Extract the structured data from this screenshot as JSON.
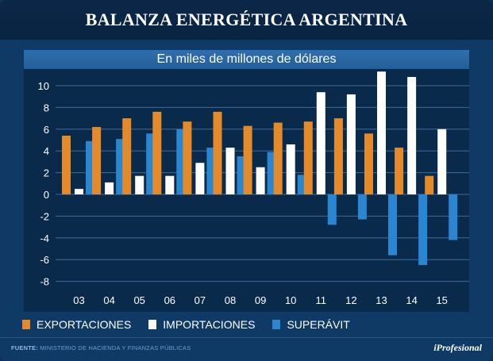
{
  "title": "BALANZA ENERGÉTICA ARGENTINA",
  "subtitle": "En miles de millones de dólares",
  "legend": {
    "exports": "EXPORTACIONES",
    "imports": "IMPORTACIONES",
    "surplus": "SUPERÁVIT"
  },
  "colors": {
    "exports": "#e48a2a",
    "imports": "#ffffff",
    "surplus": "#2a86d0"
  },
  "footer": {
    "source_label": "FUENTE:",
    "source_text": "MINISTERIO DE HACIENDA Y FINANZAS PÚBLICAS",
    "brand": "iProfesional"
  },
  "chart_data": {
    "type": "bar",
    "title": "BALANZA ENERGÉTICA ARGENTINA",
    "subtitle": "En miles de millones de dólares",
    "xlabel": "",
    "ylabel": "",
    "categories": [
      "03",
      "04",
      "05",
      "06",
      "07",
      "08",
      "09",
      "10",
      "11",
      "12",
      "13",
      "14",
      "15"
    ],
    "ylim": [
      -8,
      11
    ],
    "yticks": [
      10,
      8,
      6,
      4,
      2,
      0,
      -2,
      -4,
      -6,
      -8
    ],
    "grid": true,
    "legend_position": "bottom-left",
    "series": [
      {
        "name": "EXPORTACIONES",
        "values": [
          5.4,
          6.2,
          7.0,
          7.6,
          6.7,
          7.6,
          6.3,
          6.6,
          6.7,
          7.0,
          5.6,
          4.3,
          1.7
        ]
      },
      {
        "name": "IMPORTACIONES",
        "values": [
          0.5,
          1.1,
          1.7,
          1.7,
          2.9,
          4.3,
          2.5,
          4.6,
          9.4,
          9.2,
          11.3,
          10.8,
          6.0
        ]
      },
      {
        "name": "SUPERÁVIT",
        "values": [
          4.9,
          5.1,
          5.6,
          6.0,
          4.3,
          3.5,
          3.9,
          1.8,
          -2.8,
          -2.3,
          -5.6,
          -6.5,
          -4.2
        ]
      }
    ]
  }
}
